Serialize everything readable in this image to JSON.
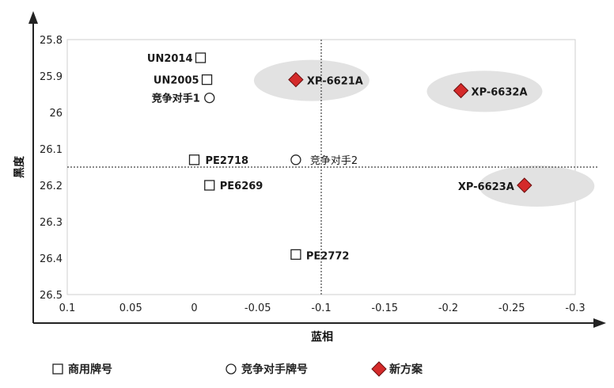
{
  "chart_data": {
    "type": "scatter",
    "xlabel": "蓝相",
    "ylabel": "黑度",
    "xlim": [
      0.1,
      -0.3
    ],
    "ylim": [
      25.8,
      26.5
    ],
    "x_ticks": [
      "0.1",
      "0.05",
      "0",
      "-0.05",
      "-0.1",
      "-0.15",
      "-0.2",
      "-0.25",
      "-0.3"
    ],
    "y_ticks": [
      "25.8",
      "25.9",
      "26",
      "26.1",
      "26.2",
      "26.3",
      "26.4",
      "26.5"
    ],
    "reference_lines": {
      "x": -0.1,
      "y": 26.15
    },
    "series": [
      {
        "name": "商用牌号",
        "marker": "square",
        "points": [
          {
            "label": "UN2014",
            "x": -0.005,
            "y": 25.85
          },
          {
            "label": "UN2005",
            "x": -0.01,
            "y": 25.91
          },
          {
            "label": "PE2718",
            "x": 0.0,
            "y": 26.13
          },
          {
            "label": "PE6269",
            "x": -0.012,
            "y": 26.2
          },
          {
            "label": "PE2772",
            "x": -0.08,
            "y": 26.39
          }
        ]
      },
      {
        "name": "竞争对手牌号",
        "marker": "circle",
        "points": [
          {
            "label": "竞争对手1",
            "x": -0.012,
            "y": 25.96
          },
          {
            "label": "竞争对手2",
            "x": -0.08,
            "y": 26.13
          }
        ]
      },
      {
        "name": "新方案",
        "marker": "diamond",
        "color": "#d42a2a",
        "points": [
          {
            "label": "XP-6621A",
            "x": -0.08,
            "y": 25.91
          },
          {
            "label": "XP-6632A",
            "x": -0.21,
            "y": 25.94
          },
          {
            "label": "XP-6623A",
            "x": -0.26,
            "y": 26.2
          }
        ]
      }
    ],
    "highlight_color": "#e2e2e2",
    "grid": false
  }
}
